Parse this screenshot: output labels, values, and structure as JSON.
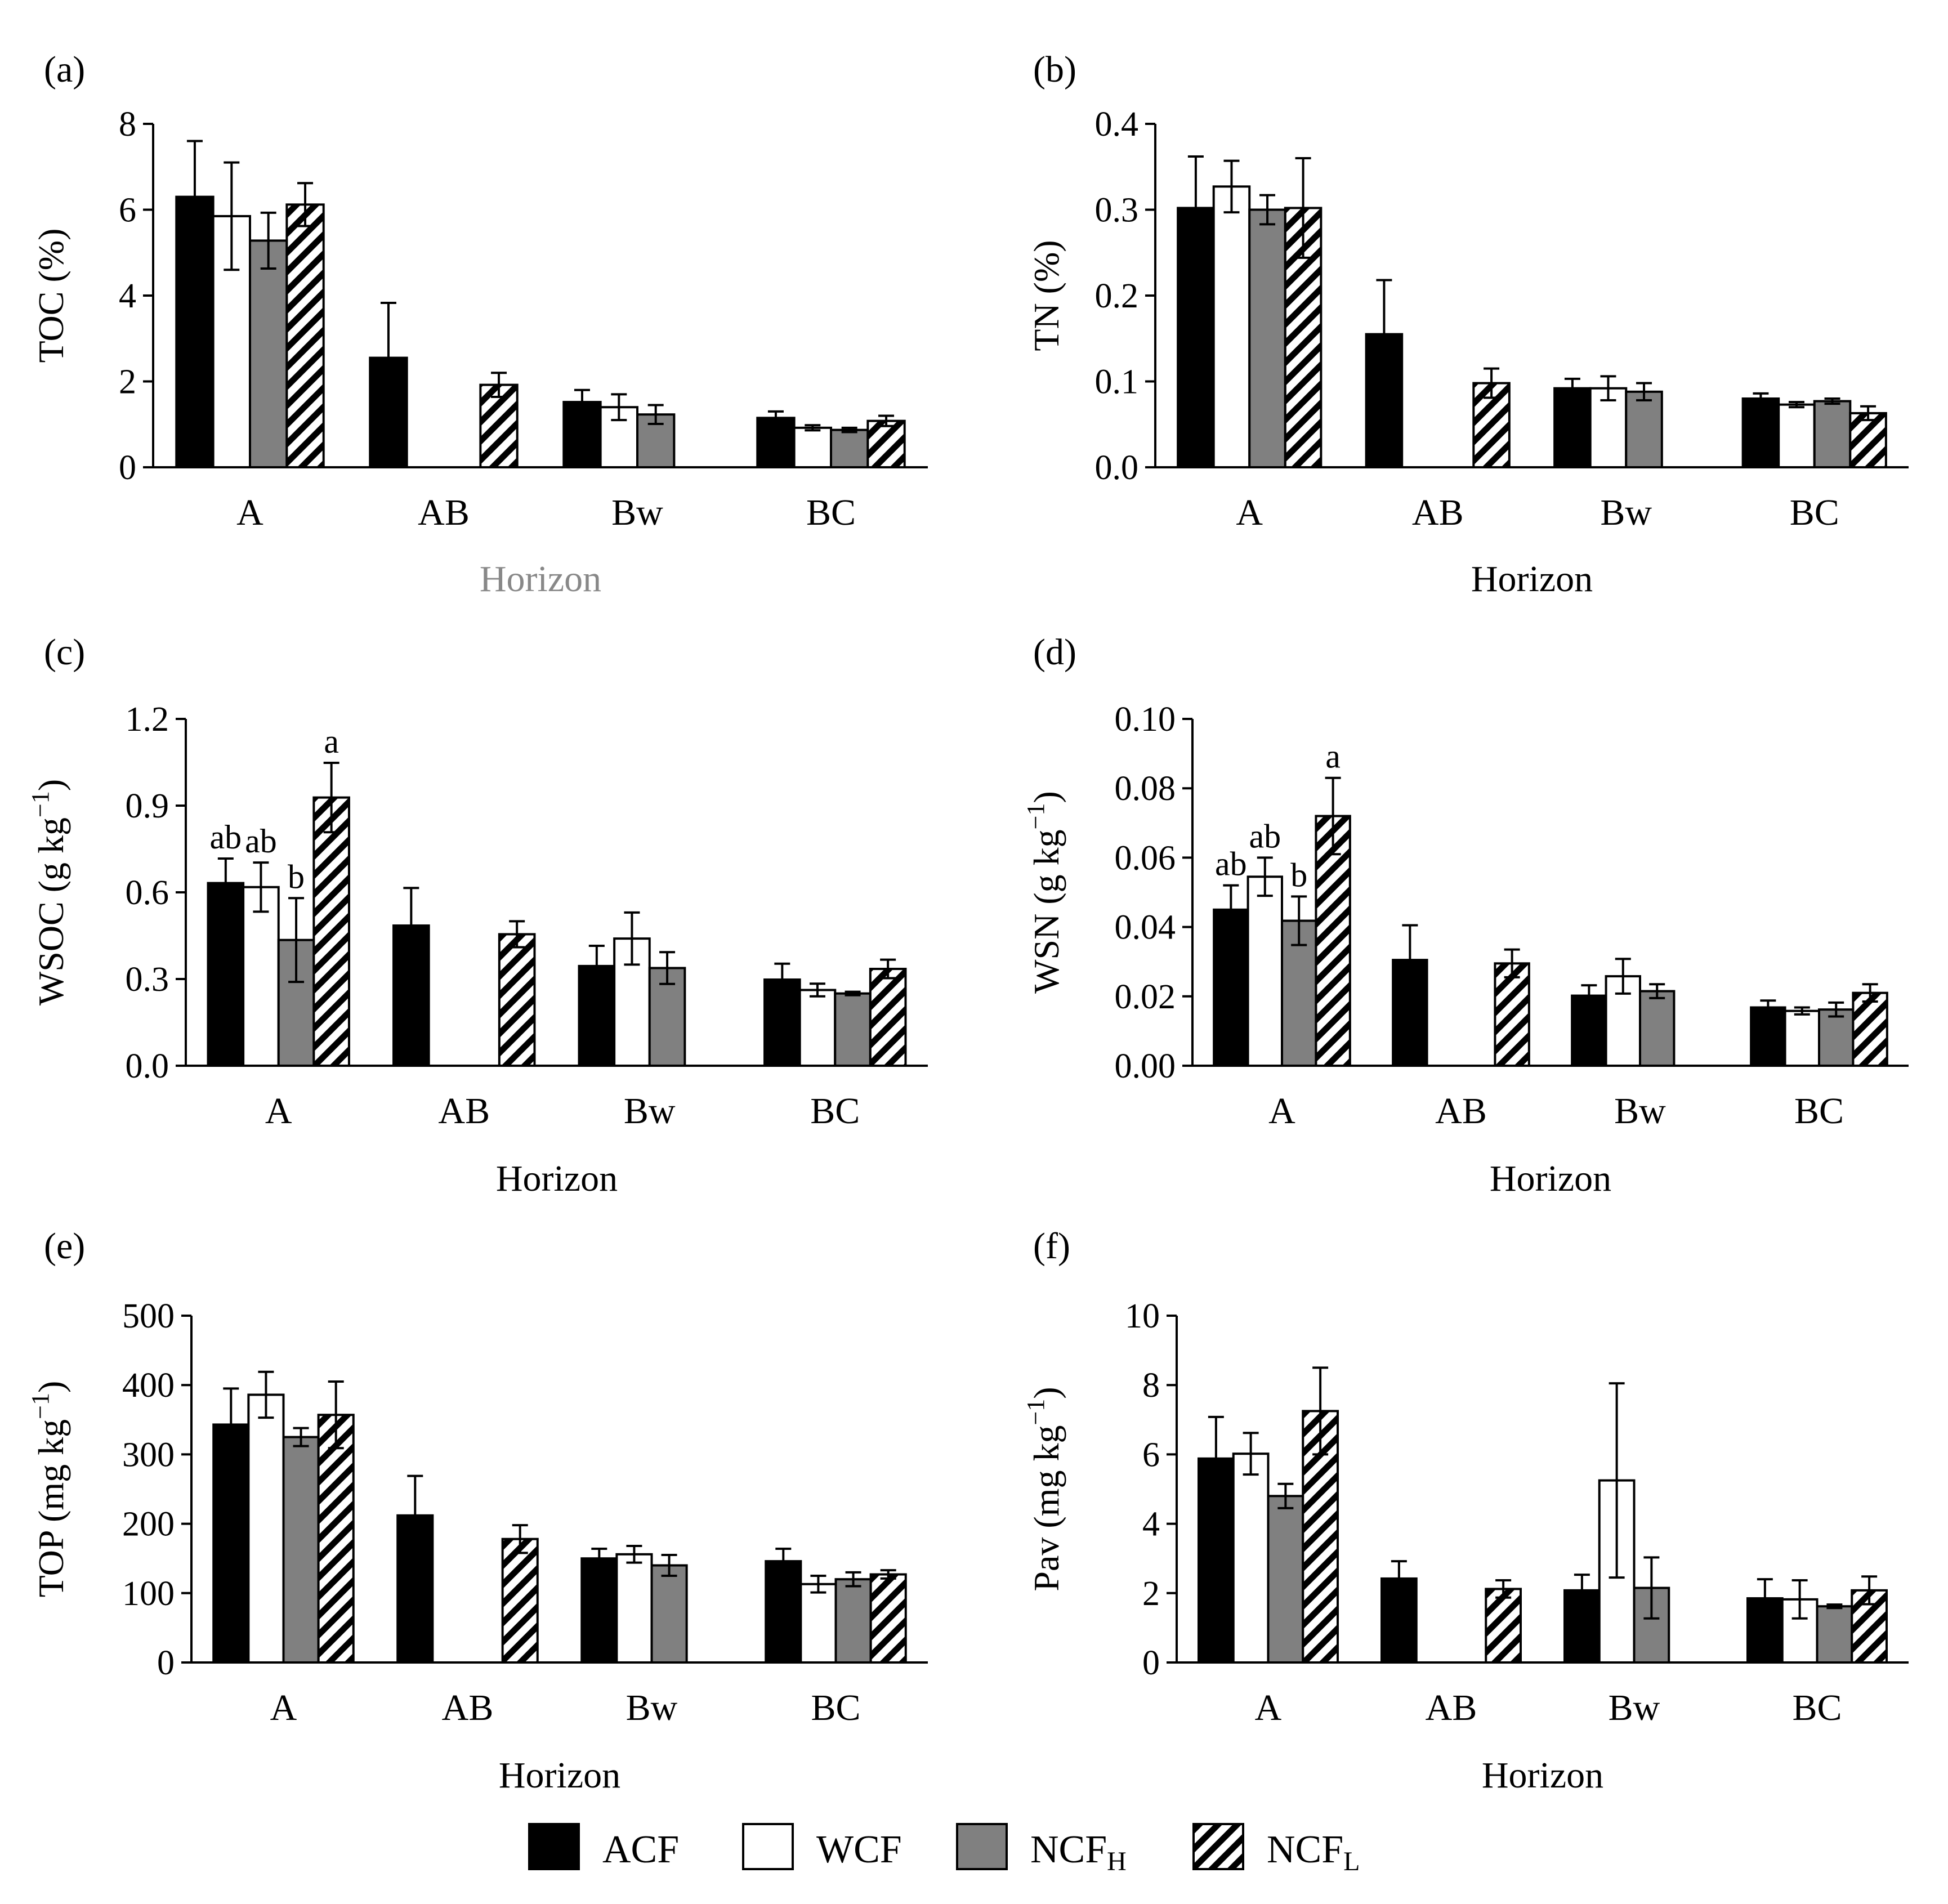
{
  "chart_data": [
    {
      "type": "bar",
      "panel_label": "(a)",
      "ylabel": "TOC (%)",
      "xlabel": "Horizon",
      "xlabel_color": "#888888",
      "ylim": [
        0,
        8
      ],
      "yticks": [
        "0",
        "2",
        "4",
        "6",
        "8"
      ],
      "categories": [
        "A",
        "AB",
        "Bw",
        "BC"
      ],
      "series": [
        {
          "name": "ACF",
          "values": [
            6.3,
            2.55,
            1.52,
            1.15
          ],
          "errors": [
            1.3,
            1.28,
            0.28,
            0.15
          ]
        },
        {
          "name": "WCF",
          "values": [
            5.85,
            null,
            1.4,
            0.92
          ],
          "errors": [
            1.25,
            null,
            0.3,
            0.06
          ]
        },
        {
          "name": "NCFH",
          "values": [
            5.28,
            null,
            1.23,
            0.87
          ],
          "errors": [
            0.65,
            null,
            0.22,
            0.05
          ]
        },
        {
          "name": "NCFL",
          "values": [
            6.12,
            1.92,
            null,
            1.08
          ],
          "errors": [
            0.5,
            0.28,
            null,
            0.12
          ]
        }
      ],
      "sig_labels": []
    },
    {
      "type": "bar",
      "panel_label": "(b)",
      "ylabel": "TN (%)",
      "xlabel": "Horizon",
      "xlabel_color": "#000000",
      "ylim": [
        0,
        0.4
      ],
      "yticks": [
        "0.0",
        "0.1",
        "0.2",
        "0.3",
        "0.4"
      ],
      "categories": [
        "A",
        "AB",
        "Bw",
        "BC"
      ],
      "series": [
        {
          "name": "ACF",
          "values": [
            0.302,
            0.155,
            0.092,
            0.08
          ],
          "errors": [
            0.06,
            0.063,
            0.011,
            0.006
          ]
        },
        {
          "name": "WCF",
          "values": [
            0.327,
            null,
            0.092,
            0.073
          ],
          "errors": [
            0.03,
            null,
            0.014,
            0.003
          ]
        },
        {
          "name": "NCFH",
          "values": [
            0.3,
            null,
            0.088,
            0.077
          ],
          "errors": [
            0.017,
            null,
            0.01,
            0.003
          ]
        },
        {
          "name": "NCFL",
          "values": [
            0.302,
            0.098,
            null,
            0.063
          ],
          "errors": [
            0.058,
            0.017,
            null,
            0.008
          ]
        }
      ],
      "sig_labels": []
    },
    {
      "type": "bar",
      "panel_label": "(c)",
      "ylabel": "WSOC (g kg",
      "ylabel_sup": "−1",
      "ylabel_end": ")",
      "xlabel": "Horizon",
      "xlabel_color": "#000000",
      "ylim": [
        0,
        1.2
      ],
      "yticks": [
        "0.0",
        "0.3",
        "0.6",
        "0.9",
        "1.2"
      ],
      "categories": [
        "A",
        "AB",
        "Bw",
        "BC"
      ],
      "series": [
        {
          "name": "ACF",
          "values": [
            0.632,
            0.485,
            0.345,
            0.298
          ],
          "errors": [
            0.085,
            0.13,
            0.07,
            0.055
          ]
        },
        {
          "name": "WCF",
          "values": [
            0.618,
            null,
            0.44,
            0.262
          ],
          "errors": [
            0.085,
            null,
            0.09,
            0.022
          ]
        },
        {
          "name": "NCFH",
          "values": [
            0.435,
            null,
            0.338,
            0.25
          ],
          "errors": [
            0.145,
            null,
            0.055,
            0.006
          ]
        },
        {
          "name": "NCFL",
          "values": [
            0.928,
            0.455,
            null,
            0.335
          ],
          "errors": [
            0.12,
            0.045,
            null,
            0.032
          ]
        }
      ],
      "sig_labels": [
        {
          "group": 0,
          "series": 0,
          "text": "ab"
        },
        {
          "group": 0,
          "series": 1,
          "text": "ab"
        },
        {
          "group": 0,
          "series": 2,
          "text": "b"
        },
        {
          "group": 0,
          "series": 3,
          "text": "a"
        }
      ]
    },
    {
      "type": "bar",
      "panel_label": "(d)",
      "ylabel": "WSN (g kg",
      "ylabel_sup": "−1",
      "ylabel_end": ")",
      "xlabel": "Horizon",
      "xlabel_color": "#000000",
      "ylim": [
        0,
        0.1
      ],
      "yticks": [
        "0.00",
        "0.02",
        "0.04",
        "0.06",
        "0.08",
        "0.10"
      ],
      "categories": [
        "A",
        "AB",
        "Bw",
        "BC"
      ],
      "series": [
        {
          "name": "ACF",
          "values": [
            0.045,
            0.0305,
            0.0202,
            0.0168
          ],
          "errors": [
            0.007,
            0.01,
            0.003,
            0.002
          ]
        },
        {
          "name": "WCF",
          "values": [
            0.0545,
            null,
            0.0258,
            0.0158
          ],
          "errors": [
            0.0055,
            null,
            0.005,
            0.001
          ]
        },
        {
          "name": "NCFH",
          "values": [
            0.0418,
            null,
            0.0215,
            0.0162
          ],
          "errors": [
            0.007,
            null,
            0.002,
            0.002
          ]
        },
        {
          "name": "NCFL",
          "values": [
            0.072,
            0.0295,
            null,
            0.021
          ],
          "errors": [
            0.011,
            0.004,
            null,
            0.0025
          ]
        }
      ],
      "sig_labels": [
        {
          "group": 0,
          "series": 0,
          "text": "ab"
        },
        {
          "group": 0,
          "series": 1,
          "text": "ab"
        },
        {
          "group": 0,
          "series": 2,
          "text": "b"
        },
        {
          "group": 0,
          "series": 3,
          "text": "a"
        }
      ]
    },
    {
      "type": "bar",
      "panel_label": "(e)",
      "ylabel": "TOP (mg kg",
      "ylabel_sup": "−1",
      "ylabel_end": ")",
      "xlabel": "Horizon",
      "xlabel_color": "#000000",
      "ylim": [
        0,
        500
      ],
      "yticks": [
        "0",
        "100",
        "200",
        "300",
        "400",
        "500"
      ],
      "categories": [
        "A",
        "AB",
        "Bw",
        "BC"
      ],
      "series": [
        {
          "name": "ACF",
          "values": [
            343,
            212,
            150,
            146
          ],
          "errors": [
            52,
            57,
            14,
            18
          ]
        },
        {
          "name": "WCF",
          "values": [
            386,
            null,
            156,
            113
          ],
          "errors": [
            33,
            null,
            12,
            12
          ]
        },
        {
          "name": "NCFH",
          "values": [
            325,
            null,
            140,
            120
          ],
          "errors": [
            13,
            null,
            15,
            10
          ]
        },
        {
          "name": "NCFL",
          "values": [
            357,
            178,
            null,
            127
          ],
          "errors": [
            48,
            20,
            null,
            6
          ]
        }
      ],
      "sig_labels": []
    },
    {
      "type": "bar",
      "panel_label": "(f)",
      "ylabel": "Pav (mg kg",
      "ylabel_sup": "−1",
      "ylabel_end": ")",
      "xlabel": "Horizon",
      "xlabel_color": "#000000",
      "ylim": [
        0,
        10
      ],
      "yticks": [
        "0",
        "2",
        "4",
        "6",
        "8",
        "10"
      ],
      "categories": [
        "A",
        "AB",
        "Bw",
        "BC"
      ],
      "series": [
        {
          "name": "ACF",
          "values": [
            5.88,
            2.42,
            2.08,
            1.85
          ],
          "errors": [
            1.2,
            0.5,
            0.45,
            0.55
          ]
        },
        {
          "name": "WCF",
          "values": [
            6.02,
            null,
            5.25,
            1.82
          ],
          "errors": [
            0.6,
            null,
            2.8,
            0.55
          ]
        },
        {
          "name": "NCFH",
          "values": [
            4.8,
            null,
            2.15,
            1.62
          ],
          "errors": [
            0.35,
            null,
            0.88,
            0.05
          ]
        },
        {
          "name": "NCFL",
          "values": [
            7.25,
            2.12,
            null,
            2.08
          ],
          "errors": [
            1.25,
            0.25,
            null,
            0.4
          ]
        }
      ],
      "sig_labels": []
    }
  ],
  "legend": [
    {
      "key": "ACF",
      "name": "ACF",
      "sub": ""
    },
    {
      "key": "WCF",
      "name": "WCF",
      "sub": ""
    },
    {
      "key": "NCFH",
      "name": "NCF",
      "sub": "H"
    },
    {
      "key": "NCFL",
      "name": "NCF",
      "sub": "L"
    }
  ],
  "colors": {
    "ACF": "#000000",
    "WCF": "#ffffff",
    "NCFH": "#808080",
    "NCFL": "hatch",
    "axis": "#000000"
  }
}
